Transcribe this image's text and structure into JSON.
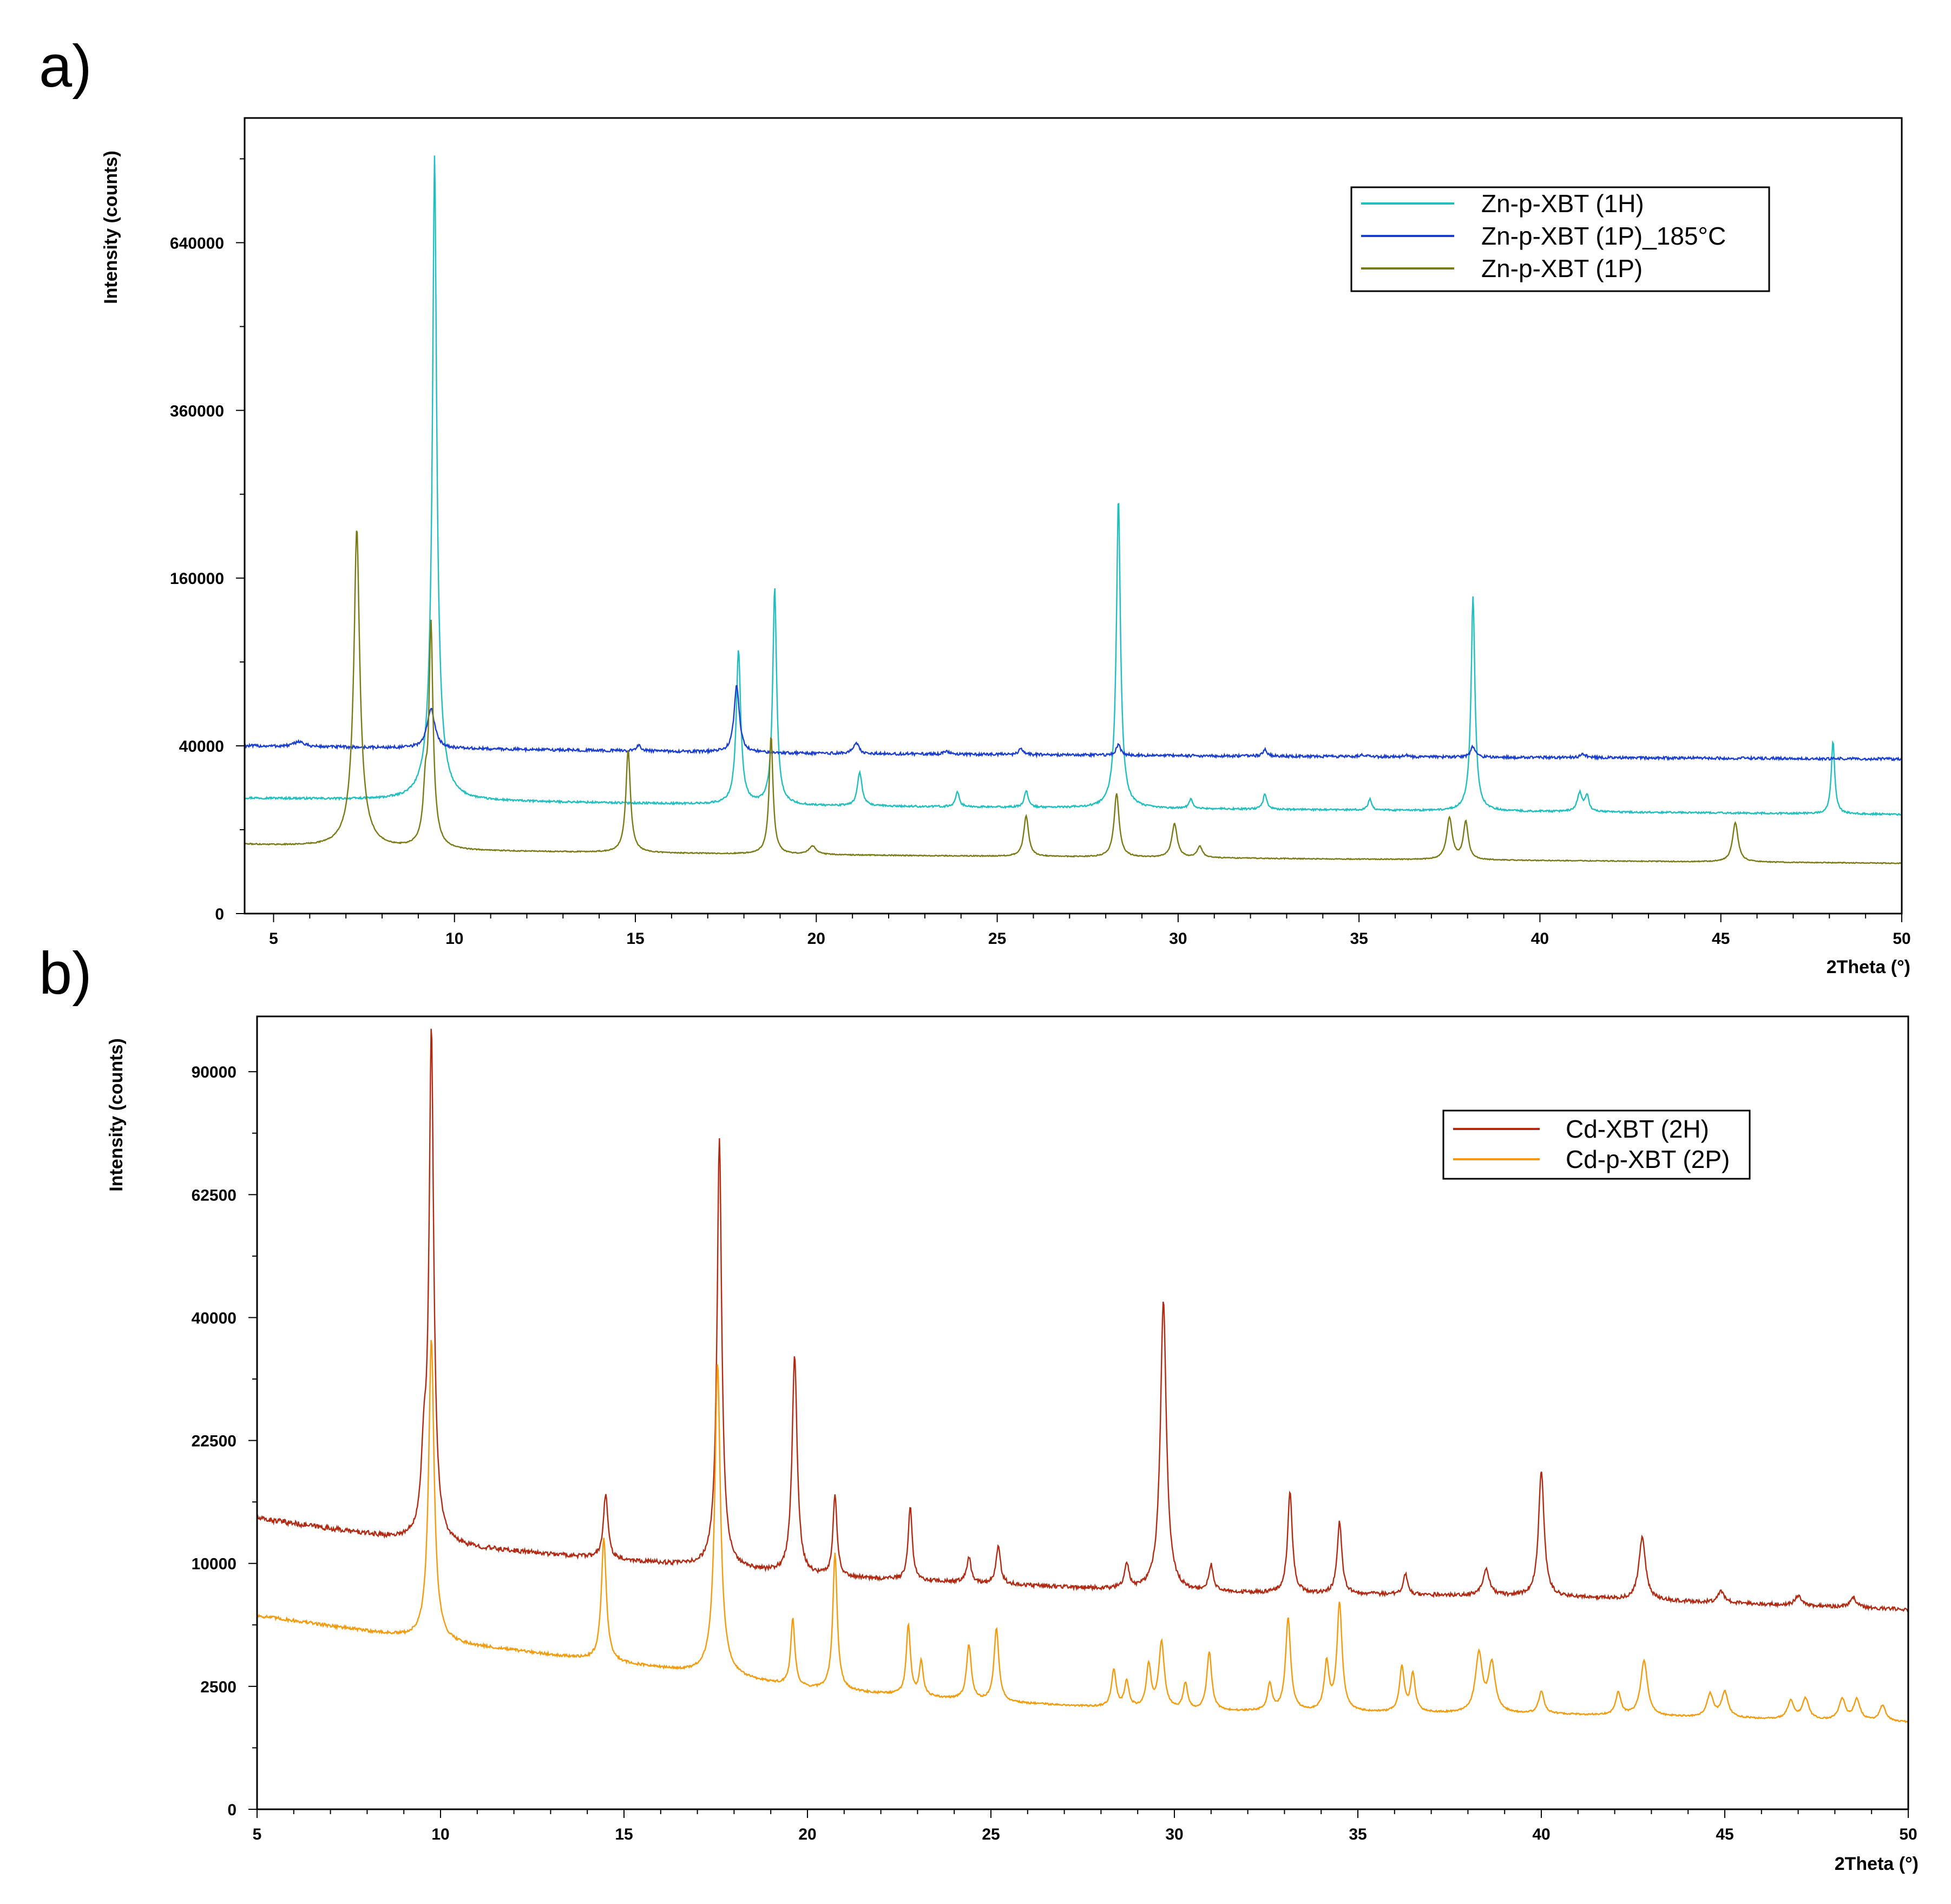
{
  "chart_data": [
    {
      "panel_label": "a)",
      "type": "line",
      "xlabel": "2Theta (°)",
      "ylabel": "Intensity (counts)",
      "xlim": [
        4.2,
        50
      ],
      "y_scale": "sqrt",
      "ylim": [
        0,
        900000
      ],
      "x_ticks": [
        5,
        10,
        15,
        20,
        25,
        30,
        35,
        40,
        45,
        50
      ],
      "x_tick_labels": [
        "5",
        "10",
        "15",
        "20",
        "25",
        "30",
        "35",
        "40",
        "45",
        "50"
      ],
      "y_ticks": [
        0,
        40000,
        160000,
        360000,
        640000
      ],
      "y_tick_labels": [
        "0",
        "40000",
        "160000",
        "360000",
        "640000"
      ],
      "grid": false,
      "legend_position": "top-right",
      "series": [
        {
          "name": "Zn-p-XBT (1H)",
          "color": "#1fbfbf",
          "baseline": [
            [
              4.2,
              19000
            ],
            [
              20,
              16500
            ],
            [
              35,
              15200
            ],
            [
              50,
              14000
            ]
          ],
          "peaks": [
            [
              9.45,
              800000,
              0.05
            ],
            [
              17.85,
              82000,
              0.06
            ],
            [
              18.85,
              135000,
              0.05
            ],
            [
              21.2,
              12000,
              0.07
            ],
            [
              23.9,
              5000,
              0.06
            ],
            [
              25.8,
              5500,
              0.06
            ],
            [
              28.35,
              231000,
              0.05
            ],
            [
              30.35,
              3000,
              0.06
            ],
            [
              32.4,
              5000,
              0.06
            ],
            [
              35.3,
              3500,
              0.06
            ],
            [
              38.15,
              128000,
              0.05
            ],
            [
              41.1,
              6000,
              0.08
            ],
            [
              41.3,
              5000,
              0.06
            ],
            [
              48.1,
              28000,
              0.05
            ]
          ]
        },
        {
          "name": "Zn-p-XBT (1P)_185°C",
          "color": "#1a3fd0",
          "baseline": [
            [
              4.2,
              40000
            ],
            [
              20,
              36500
            ],
            [
              35,
              35000
            ],
            [
              50,
              34000
            ]
          ],
          "peaks": [
            [
              5.7,
              2500,
              0.15
            ],
            [
              9.35,
              21000,
              0.12
            ],
            [
              15.1,
              2500,
              0.08
            ],
            [
              17.8,
              37000,
              0.08
            ],
            [
              21.1,
              5000,
              0.09
            ],
            [
              23.6,
              1200,
              0.08
            ],
            [
              25.65,
              2500,
              0.07
            ],
            [
              28.35,
              5000,
              0.07
            ],
            [
              32.4,
              3000,
              0.07
            ],
            [
              35.1,
              1000,
              0.07
            ],
            [
              36.3,
              800,
              0.07
            ],
            [
              38.15,
              5000,
              0.07
            ],
            [
              41.2,
              1500,
              0.1
            ]
          ]
        },
        {
          "name": "Zn-p-XBT (1P)",
          "color": "#7a7a14",
          "baseline": [
            [
              4.2,
              6800
            ],
            [
              10,
              5600
            ],
            [
              20,
              4900
            ],
            [
              35,
              4200
            ],
            [
              50,
              3600
            ]
          ],
          "peaks": [
            [
              7.3,
              205000,
              0.07
            ],
            [
              9.2,
              16000,
              0.06
            ],
            [
              9.35,
              115000,
              0.05
            ],
            [
              14.8,
              33000,
              0.06
            ],
            [
              18.75,
              40000,
              0.05
            ],
            [
              19.9,
              1500,
              0.12
            ],
            [
              25.8,
              9000,
              0.07
            ],
            [
              28.3,
              16000,
              0.07
            ],
            [
              29.9,
              7000,
              0.08
            ],
            [
              30.6,
              2000,
              0.08
            ],
            [
              37.5,
              9000,
              0.08
            ],
            [
              37.95,
              8000,
              0.07
            ],
            [
              45.4,
              8000,
              0.08
            ]
          ]
        }
      ]
    },
    {
      "panel_label": "b)",
      "type": "line",
      "xlabel": "2Theta (°)",
      "ylabel": "Intensity (counts)",
      "xlim": [
        5,
        50
      ],
      "y_scale": "sqrt",
      "ylim": [
        0,
        104000
      ],
      "x_ticks": [
        5,
        10,
        15,
        20,
        25,
        30,
        35,
        40,
        45,
        50
      ],
      "x_tick_labels": [
        "5",
        "10",
        "15",
        "20",
        "25",
        "30",
        "35",
        "40",
        "45",
        "50"
      ],
      "y_ticks": [
        0,
        2500,
        10000,
        22500,
        40000,
        62500,
        90000
      ],
      "y_tick_labels": [
        "0",
        "2500",
        "10000",
        "22500",
        "40000",
        "62500",
        "90000"
      ],
      "grid": false,
      "legend_position": "top-right",
      "series": [
        {
          "name": "Cd-XBT (2H)",
          "color": "#b22a12",
          "baseline": [
            [
              5,
              14000
            ],
            [
              10,
              11500
            ],
            [
              20,
              9000
            ],
            [
              30,
              7800
            ],
            [
              40,
              7500
            ],
            [
              50,
              6600
            ]
          ],
          "peaks": [
            [
              9.75,
              89000,
              0.06
            ],
            [
              9.55,
              8000,
              0.08
            ],
            [
              14.5,
              6000,
              0.07
            ],
            [
              17.6,
              65000,
              0.06
            ],
            [
              19.65,
              25000,
              0.07
            ],
            [
              20.75,
              7500,
              0.06
            ],
            [
              22.8,
              6500,
              0.06
            ],
            [
              24.4,
              2000,
              0.07
            ],
            [
              25.2,
              3000,
              0.07
            ],
            [
              28.7,
              2000,
              0.07
            ],
            [
              29.7,
              35000,
              0.08
            ],
            [
              31.0,
              2000,
              0.07
            ],
            [
              33.15,
              9000,
              0.07
            ],
            [
              34.5,
              6000,
              0.07
            ],
            [
              36.3,
              1500,
              0.07
            ],
            [
              38.5,
              2000,
              0.1
            ],
            [
              40.0,
              11500,
              0.08
            ],
            [
              42.75,
              5000,
              0.1
            ],
            [
              44.9,
              800,
              0.1
            ],
            [
              47.0,
              700,
              0.1
            ],
            [
              48.5,
              700,
              0.1
            ]
          ]
        },
        {
          "name": "Cd-p-XBT (2P)",
          "color": "#f59a0a",
          "baseline": [
            [
              5,
              6200
            ],
            [
              10,
              4600
            ],
            [
              15,
              3500
            ],
            [
              20,
              2400
            ],
            [
              25,
              1900
            ],
            [
              30,
              1600
            ],
            [
              40,
              1500
            ],
            [
              50,
              1250
            ]
          ],
          "peaks": [
            [
              9.75,
              32000,
              0.07
            ],
            [
              14.45,
              8500,
              0.07
            ],
            [
              17.55,
              30000,
              0.07
            ],
            [
              19.6,
              3500,
              0.06
            ],
            [
              20.75,
              8500,
              0.06
            ],
            [
              22.75,
              3500,
              0.06
            ],
            [
              23.1,
              1500,
              0.06
            ],
            [
              24.4,
              2500,
              0.07
            ],
            [
              25.15,
              3500,
              0.07
            ],
            [
              28.35,
              1500,
              0.07
            ],
            [
              28.7,
              1000,
              0.07
            ],
            [
              29.3,
              1800,
              0.07
            ],
            [
              29.65,
              3000,
              0.08
            ],
            [
              30.3,
              1000,
              0.07
            ],
            [
              30.95,
              2500,
              0.07
            ],
            [
              32.6,
              1000,
              0.07
            ],
            [
              33.1,
              4500,
              0.07
            ],
            [
              34.15,
              2000,
              0.07
            ],
            [
              34.5,
              5500,
              0.07
            ],
            [
              36.2,
              1800,
              0.07
            ],
            [
              36.5,
              1500,
              0.07
            ],
            [
              38.3,
              2500,
              0.1
            ],
            [
              38.65,
              2000,
              0.1
            ],
            [
              40.0,
              800,
              0.08
            ],
            [
              42.1,
              800,
              0.08
            ],
            [
              42.8,
              2200,
              0.1
            ],
            [
              44.6,
              800,
              0.1
            ],
            [
              45.0,
              900,
              0.1
            ],
            [
              46.8,
              600,
              0.1
            ],
            [
              47.2,
              700,
              0.1
            ],
            [
              48.2,
              700,
              0.1
            ],
            [
              48.6,
              700,
              0.1
            ],
            [
              49.3,
              500,
              0.1
            ]
          ]
        }
      ]
    }
  ]
}
